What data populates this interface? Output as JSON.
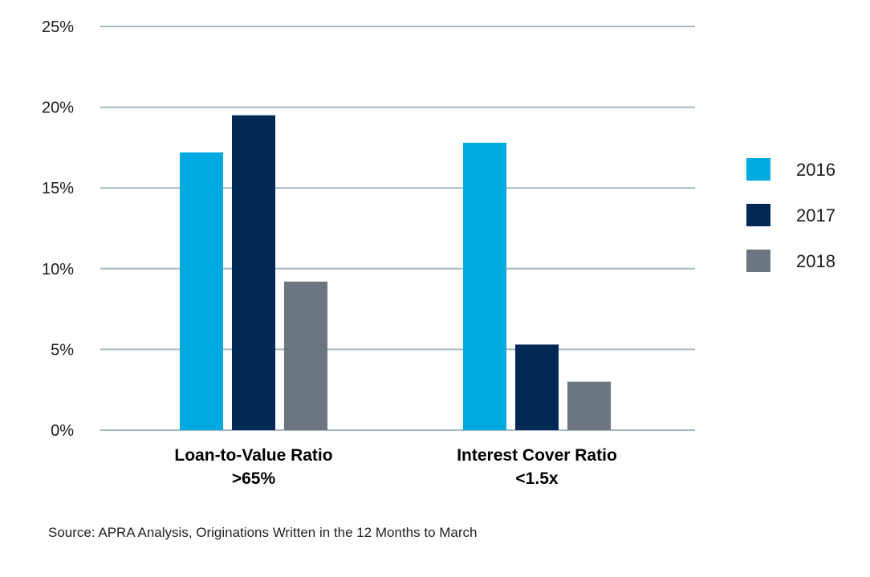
{
  "chart_data": {
    "type": "bar",
    "categories": [
      [
        "Loan-to-Value Ratio",
        ">65%"
      ],
      [
        "Interest Cover Ratio",
        "<1.5x"
      ]
    ],
    "series": [
      {
        "name": "2016",
        "color": "#00a9e0",
        "values": [
          17.2,
          17.8
        ]
      },
      {
        "name": "2017",
        "color": "#002854",
        "values": [
          19.5,
          5.3
        ]
      },
      {
        "name": "2018",
        "color": "#6b7680",
        "values": [
          9.2,
          3.0
        ]
      }
    ],
    "ylim": [
      0,
      25
    ],
    "yticks": [
      0,
      5,
      10,
      15,
      20,
      25
    ],
    "ytick_labels": [
      "0%",
      "5%",
      "10%",
      "15%",
      "20%",
      "25%"
    ],
    "grid": true,
    "gridline_color": "#a8b8c4",
    "legend_placement": "right"
  },
  "source_note": "Source: APRA Analysis, Originations Written in the 12 Months to March"
}
